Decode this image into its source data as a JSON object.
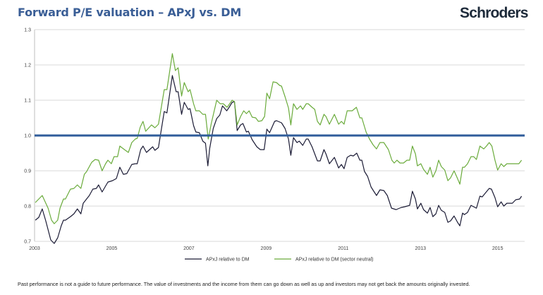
{
  "header": {
    "title": "Forward P/E valuation – APxJ vs. DM",
    "logo": "Schroders"
  },
  "footer": {
    "disclaimer": "Past performance is not a guide to future performance. The value of investments and the income from them can go down as well as up and investors may not get back the amounts originally invested."
  },
  "chart_data": {
    "type": "line",
    "title": "Forward P/E valuation – APxJ vs. DM",
    "xlabel": "",
    "ylabel": "",
    "xlim": [
      2003,
      2015.7
    ],
    "ylim": [
      0.7,
      1.3
    ],
    "x_ticks": [
      "2003",
      "2005",
      "2007",
      "2009",
      "2011",
      "2013",
      "2015"
    ],
    "y_ticks": [
      "0.7",
      "0.8",
      "0.9",
      "1.0",
      "1.1",
      "1.2",
      "1.3"
    ],
    "grid": "horizontal",
    "legend": "bottom",
    "reference_line": {
      "value": 1.0,
      "color": "#2f5c9a"
    },
    "series": [
      {
        "name": "APxJ relative to DM",
        "color": "#1b1b35",
        "points": [
          [
            2003.02,
            0.76
          ],
          [
            2003.11,
            0.768
          ],
          [
            2003.2,
            0.792
          ],
          [
            2003.29,
            0.758
          ],
          [
            2003.42,
            0.704
          ],
          [
            2003.51,
            0.694
          ],
          [
            2003.6,
            0.71
          ],
          [
            2003.69,
            0.744
          ],
          [
            2003.75,
            0.76
          ],
          [
            2003.8,
            0.76
          ],
          [
            2003.93,
            0.77
          ],
          [
            2004.02,
            0.778
          ],
          [
            2004.11,
            0.792
          ],
          [
            2004.2,
            0.778
          ],
          [
            2004.26,
            0.808
          ],
          [
            2004.42,
            0.83
          ],
          [
            2004.51,
            0.848
          ],
          [
            2004.6,
            0.85
          ],
          [
            2004.66,
            0.86
          ],
          [
            2004.75,
            0.84
          ],
          [
            2004.9,
            0.868
          ],
          [
            2005.02,
            0.872
          ],
          [
            2005.12,
            0.878
          ],
          [
            2005.21,
            0.91
          ],
          [
            2005.3,
            0.89
          ],
          [
            2005.39,
            0.892
          ],
          [
            2005.52,
            0.918
          ],
          [
            2005.61,
            0.92
          ],
          [
            2005.66,
            0.92
          ],
          [
            2005.75,
            0.96
          ],
          [
            2005.81,
            0.97
          ],
          [
            2005.9,
            0.952
          ],
          [
            2006.06,
            0.968
          ],
          [
            2006.12,
            0.958
          ],
          [
            2006.21,
            0.966
          ],
          [
            2006.26,
            1.0
          ],
          [
            2006.36,
            1.068
          ],
          [
            2006.43,
            1.064
          ],
          [
            2006.57,
            1.17
          ],
          [
            2006.67,
            1.124
          ],
          [
            2006.72,
            1.124
          ],
          [
            2006.81,
            1.06
          ],
          [
            2006.88,
            1.094
          ],
          [
            2006.98,
            1.074
          ],
          [
            2007.03,
            1.076
          ],
          [
            2007.12,
            1.028
          ],
          [
            2007.18,
            1.01
          ],
          [
            2007.27,
            1.008
          ],
          [
            2007.36,
            0.984
          ],
          [
            2007.43,
            0.978
          ],
          [
            2007.49,
            0.914
          ],
          [
            2007.54,
            0.964
          ],
          [
            2007.63,
            1.02
          ],
          [
            2007.72,
            1.048
          ],
          [
            2007.8,
            1.058
          ],
          [
            2007.87,
            1.084
          ],
          [
            2007.98,
            1.07
          ],
          [
            2008.03,
            1.078
          ],
          [
            2008.12,
            1.094
          ],
          [
            2008.18,
            1.096
          ],
          [
            2008.25,
            1.014
          ],
          [
            2008.34,
            1.03
          ],
          [
            2008.4,
            1.034
          ],
          [
            2008.49,
            1.01
          ],
          [
            2008.54,
            1.012
          ],
          [
            2008.64,
            0.988
          ],
          [
            2008.76,
            0.968
          ],
          [
            2008.85,
            0.96
          ],
          [
            2008.95,
            0.96
          ],
          [
            2009.02,
            1.018
          ],
          [
            2009.09,
            1.008
          ],
          [
            2009.22,
            1.04
          ],
          [
            2009.27,
            1.042
          ],
          [
            2009.4,
            1.036
          ],
          [
            2009.49,
            1.02
          ],
          [
            2009.58,
            0.99
          ],
          [
            2009.64,
            0.944
          ],
          [
            2009.71,
            0.994
          ],
          [
            2009.8,
            0.98
          ],
          [
            2009.86,
            0.984
          ],
          [
            2009.95,
            0.972
          ],
          [
            2010.04,
            0.99
          ],
          [
            2010.09,
            0.99
          ],
          [
            2010.19,
            0.968
          ],
          [
            2010.33,
            0.928
          ],
          [
            2010.4,
            0.928
          ],
          [
            2010.5,
            0.96
          ],
          [
            2010.55,
            0.948
          ],
          [
            2010.64,
            0.92
          ],
          [
            2010.77,
            0.938
          ],
          [
            2010.88,
            0.908
          ],
          [
            2010.95,
            0.918
          ],
          [
            2011.02,
            0.906
          ],
          [
            2011.1,
            0.938
          ],
          [
            2011.19,
            0.944
          ],
          [
            2011.26,
            0.942
          ],
          [
            2011.35,
            0.95
          ],
          [
            2011.43,
            0.93
          ],
          [
            2011.48,
            0.93
          ],
          [
            2011.55,
            0.898
          ],
          [
            2011.63,
            0.884
          ],
          [
            2011.72,
            0.854
          ],
          [
            2011.86,
            0.83
          ],
          [
            2011.95,
            0.846
          ],
          [
            2012.05,
            0.844
          ],
          [
            2012.14,
            0.83
          ],
          [
            2012.25,
            0.794
          ],
          [
            2012.37,
            0.79
          ],
          [
            2012.5,
            0.796
          ],
          [
            2012.59,
            0.798
          ],
          [
            2012.72,
            0.802
          ],
          [
            2012.79,
            0.842
          ],
          [
            2012.87,
            0.82
          ],
          [
            2012.92,
            0.792
          ],
          [
            2013.01,
            0.808
          ],
          [
            2013.08,
            0.79
          ],
          [
            2013.18,
            0.78
          ],
          [
            2013.25,
            0.796
          ],
          [
            2013.32,
            0.77
          ],
          [
            2013.4,
            0.778
          ],
          [
            2013.47,
            0.802
          ],
          [
            2013.54,
            0.788
          ],
          [
            2013.63,
            0.782
          ],
          [
            2013.71,
            0.754
          ],
          [
            2013.78,
            0.758
          ],
          [
            2013.87,
            0.772
          ],
          [
            2013.96,
            0.754
          ],
          [
            2014.02,
            0.744
          ],
          [
            2014.09,
            0.78
          ],
          [
            2014.14,
            0.776
          ],
          [
            2014.22,
            0.782
          ],
          [
            2014.31,
            0.802
          ],
          [
            2014.45,
            0.794
          ],
          [
            2014.54,
            0.828
          ],
          [
            2014.6,
            0.826
          ],
          [
            2014.69,
            0.838
          ],
          [
            2014.78,
            0.85
          ],
          [
            2014.84,
            0.848
          ],
          [
            2014.93,
            0.824
          ],
          [
            2015.0,
            0.798
          ],
          [
            2015.09,
            0.812
          ],
          [
            2015.16,
            0.8
          ],
          [
            2015.24,
            0.808
          ],
          [
            2015.38,
            0.808
          ],
          [
            2015.47,
            0.818
          ],
          [
            2015.57,
            0.82
          ],
          [
            2015.62,
            0.828
          ]
        ]
      },
      {
        "name": "APxJ relative to DM (sector neutral)",
        "color": "#6aab3b",
        "points": [
          [
            2003.02,
            0.81
          ],
          [
            2003.2,
            0.83
          ],
          [
            2003.35,
            0.794
          ],
          [
            2003.44,
            0.76
          ],
          [
            2003.51,
            0.75
          ],
          [
            2003.6,
            0.76
          ],
          [
            2003.66,
            0.794
          ],
          [
            2003.75,
            0.82
          ],
          [
            2003.8,
            0.82
          ],
          [
            2003.93,
            0.848
          ],
          [
            2004.02,
            0.85
          ],
          [
            2004.11,
            0.86
          ],
          [
            2004.2,
            0.85
          ],
          [
            2004.29,
            0.89
          ],
          [
            2004.35,
            0.898
          ],
          [
            2004.48,
            0.924
          ],
          [
            2004.57,
            0.932
          ],
          [
            2004.66,
            0.93
          ],
          [
            2004.75,
            0.9
          ],
          [
            2004.84,
            0.92
          ],
          [
            2004.9,
            0.93
          ],
          [
            2004.99,
            0.92
          ],
          [
            2005.06,
            0.94
          ],
          [
            2005.15,
            0.94
          ],
          [
            2005.21,
            0.97
          ],
          [
            2005.33,
            0.96
          ],
          [
            2005.43,
            0.952
          ],
          [
            2005.52,
            0.98
          ],
          [
            2005.61,
            0.99
          ],
          [
            2005.66,
            0.992
          ],
          [
            2005.74,
            1.024
          ],
          [
            2005.81,
            1.04
          ],
          [
            2005.88,
            1.012
          ],
          [
            2006.03,
            1.03
          ],
          [
            2006.12,
            1.022
          ],
          [
            2006.21,
            1.032
          ],
          [
            2006.26,
            1.064
          ],
          [
            2006.36,
            1.13
          ],
          [
            2006.43,
            1.13
          ],
          [
            2006.57,
            1.232
          ],
          [
            2006.65,
            1.184
          ],
          [
            2006.72,
            1.192
          ],
          [
            2006.81,
            1.112
          ],
          [
            2006.88,
            1.15
          ],
          [
            2006.98,
            1.124
          ],
          [
            2007.03,
            1.13
          ],
          [
            2007.12,
            1.09
          ],
          [
            2007.18,
            1.07
          ],
          [
            2007.27,
            1.07
          ],
          [
            2007.36,
            1.06
          ],
          [
            2007.43,
            1.06
          ],
          [
            2007.5,
            0.99
          ],
          [
            2007.58,
            1.034
          ],
          [
            2007.72,
            1.1
          ],
          [
            2007.81,
            1.09
          ],
          [
            2007.89,
            1.09
          ],
          [
            2007.99,
            1.08
          ],
          [
            2008.12,
            1.1
          ],
          [
            2008.18,
            1.096
          ],
          [
            2008.25,
            1.03
          ],
          [
            2008.34,
            1.054
          ],
          [
            2008.42,
            1.07
          ],
          [
            2008.49,
            1.062
          ],
          [
            2008.56,
            1.07
          ],
          [
            2008.64,
            1.052
          ],
          [
            2008.73,
            1.05
          ],
          [
            2008.8,
            1.04
          ],
          [
            2008.89,
            1.042
          ],
          [
            2008.96,
            1.054
          ],
          [
            2009.02,
            1.12
          ],
          [
            2009.09,
            1.104
          ],
          [
            2009.18,
            1.152
          ],
          [
            2009.27,
            1.15
          ],
          [
            2009.35,
            1.142
          ],
          [
            2009.4,
            1.14
          ],
          [
            2009.49,
            1.11
          ],
          [
            2009.58,
            1.078
          ],
          [
            2009.64,
            1.03
          ],
          [
            2009.71,
            1.09
          ],
          [
            2009.8,
            1.074
          ],
          [
            2009.89,
            1.084
          ],
          [
            2009.95,
            1.074
          ],
          [
            2010.04,
            1.09
          ],
          [
            2010.09,
            1.09
          ],
          [
            2010.19,
            1.08
          ],
          [
            2010.26,
            1.074
          ],
          [
            2010.33,
            1.04
          ],
          [
            2010.4,
            1.03
          ],
          [
            2010.5,
            1.06
          ],
          [
            2010.55,
            1.054
          ],
          [
            2010.64,
            1.032
          ],
          [
            2010.77,
            1.06
          ],
          [
            2010.88,
            1.032
          ],
          [
            2010.95,
            1.04
          ],
          [
            2011.02,
            1.032
          ],
          [
            2011.1,
            1.07
          ],
          [
            2011.23,
            1.07
          ],
          [
            2011.34,
            1.08
          ],
          [
            2011.43,
            1.05
          ],
          [
            2011.48,
            1.05
          ],
          [
            2011.59,
            1.01
          ],
          [
            2011.68,
            0.99
          ],
          [
            2011.77,
            0.974
          ],
          [
            2011.86,
            0.962
          ],
          [
            2011.95,
            0.98
          ],
          [
            2012.05,
            0.98
          ],
          [
            2012.17,
            0.96
          ],
          [
            2012.26,
            0.93
          ],
          [
            2012.32,
            0.922
          ],
          [
            2012.39,
            0.93
          ],
          [
            2012.47,
            0.922
          ],
          [
            2012.56,
            0.922
          ],
          [
            2012.65,
            0.93
          ],
          [
            2012.72,
            0.93
          ],
          [
            2012.79,
            0.97
          ],
          [
            2012.87,
            0.948
          ],
          [
            2012.92,
            0.914
          ],
          [
            2013.01,
            0.92
          ],
          [
            2013.08,
            0.904
          ],
          [
            2013.18,
            0.89
          ],
          [
            2013.25,
            0.91
          ],
          [
            2013.32,
            0.882
          ],
          [
            2013.4,
            0.9
          ],
          [
            2013.47,
            0.93
          ],
          [
            2013.54,
            0.912
          ],
          [
            2013.63,
            0.902
          ],
          [
            2013.71,
            0.872
          ],
          [
            2013.78,
            0.88
          ],
          [
            2013.87,
            0.9
          ],
          [
            2013.96,
            0.878
          ],
          [
            2014.02,
            0.862
          ],
          [
            2014.09,
            0.91
          ],
          [
            2014.14,
            0.91
          ],
          [
            2014.22,
            0.92
          ],
          [
            2014.31,
            0.94
          ],
          [
            2014.38,
            0.94
          ],
          [
            2014.45,
            0.932
          ],
          [
            2014.54,
            0.97
          ],
          [
            2014.64,
            0.962
          ],
          [
            2014.71,
            0.97
          ],
          [
            2014.78,
            0.98
          ],
          [
            2014.85,
            0.97
          ],
          [
            2014.93,
            0.93
          ],
          [
            2015.0,
            0.902
          ],
          [
            2015.09,
            0.92
          ],
          [
            2015.16,
            0.912
          ],
          [
            2015.24,
            0.92
          ],
          [
            2015.55,
            0.92
          ],
          [
            2015.62,
            0.93
          ]
        ]
      }
    ]
  }
}
